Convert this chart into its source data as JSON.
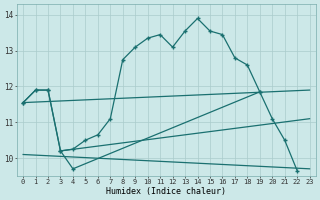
{
  "xlabel": "Humidex (Indice chaleur)",
  "bg_color": "#cce8e8",
  "grid_color": "#aacccc",
  "line_color": "#1a7070",
  "xlim": [
    -0.5,
    23.5
  ],
  "ylim": [
    9.5,
    14.3
  ],
  "xticks": [
    0,
    1,
    2,
    3,
    4,
    5,
    6,
    7,
    8,
    9,
    10,
    11,
    12,
    13,
    14,
    15,
    16,
    17,
    18,
    19,
    20,
    21,
    22,
    23
  ],
  "yticks": [
    10,
    11,
    12,
    13,
    14
  ],
  "figsize": [
    3.2,
    2.0
  ],
  "dpi": 100,
  "curve1_x": [
    0,
    1,
    2,
    3,
    4,
    5,
    6,
    7,
    8,
    9,
    10,
    11,
    12,
    13,
    14,
    15,
    16,
    17,
    18,
    19
  ],
  "curve1_y": [
    11.55,
    11.9,
    11.9,
    10.2,
    10.25,
    10.5,
    10.65,
    11.1,
    12.75,
    13.1,
    13.35,
    13.45,
    13.1,
    13.55,
    13.9,
    13.55,
    13.45,
    12.8,
    12.6,
    11.85
  ],
  "curve2_x": [
    0,
    1,
    2,
    3,
    4,
    19,
    20,
    21,
    22
  ],
  "curve2_y": [
    11.55,
    11.9,
    11.9,
    10.2,
    9.7,
    11.85,
    11.1,
    10.5,
    9.65
  ],
  "line3_x": [
    0,
    23
  ],
  "line3_y": [
    11.55,
    11.9
  ],
  "line4_x": [
    0,
    23
  ],
  "line4_y": [
    10.1,
    9.7
  ],
  "line5_x": [
    3,
    23
  ],
  "line5_y": [
    10.2,
    11.1
  ]
}
